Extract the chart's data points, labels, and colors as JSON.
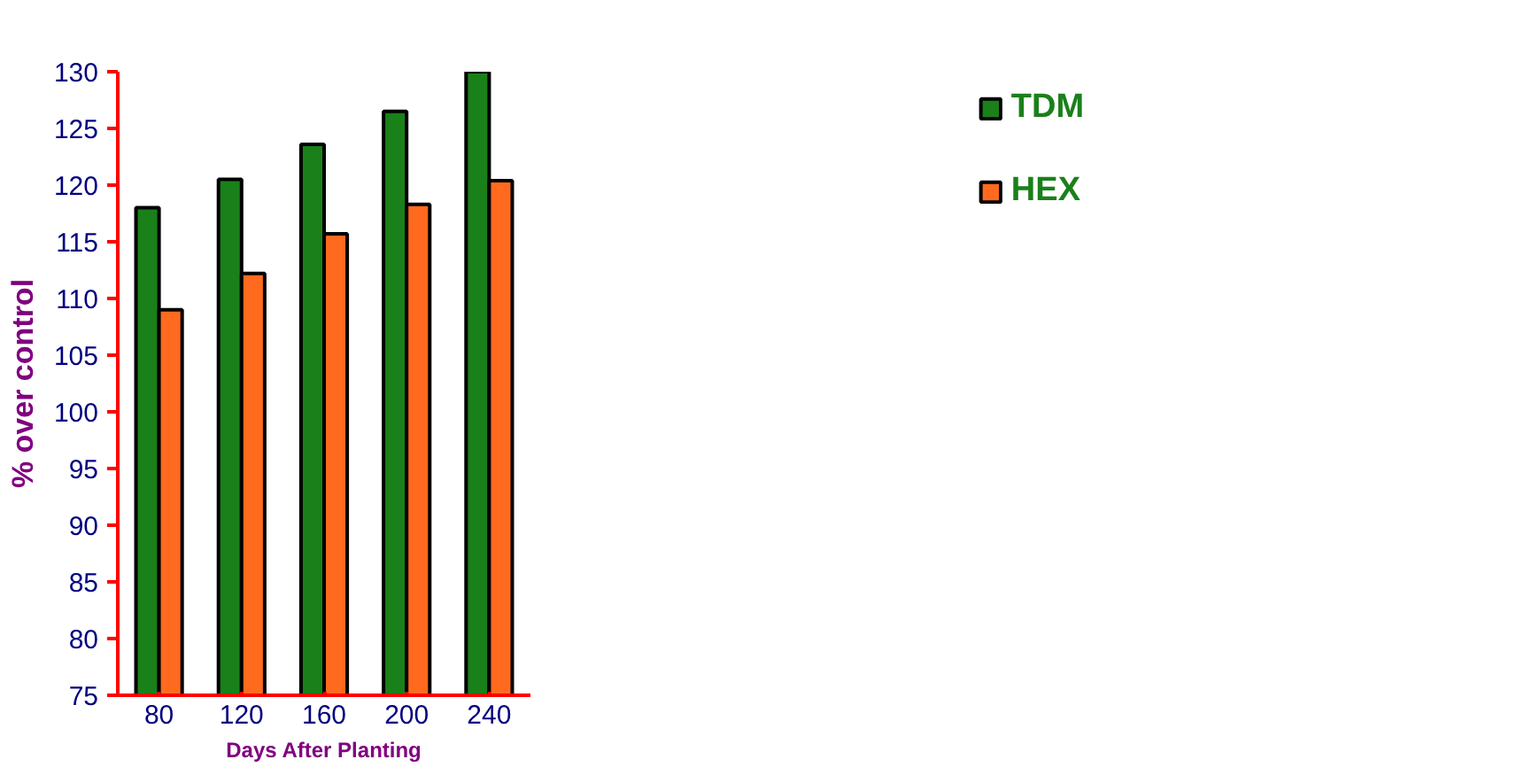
{
  "chart_data": {
    "type": "bar",
    "xlabel": "Days After Planting",
    "ylabel": "% over control",
    "categories": [
      "80",
      "120",
      "160",
      "200",
      "240"
    ],
    "series": [
      {
        "name": "TDM",
        "color": "#1a801a",
        "values": [
          118,
          120.5,
          123.6,
          126.5,
          130
        ]
      },
      {
        "name": "HEX",
        "color": "#ff6a1e",
        "values": [
          109,
          112.2,
          115.7,
          118.3,
          120.4
        ]
      }
    ],
    "ylim": [
      75,
      130
    ],
    "yticks": [
      75,
      80,
      85,
      90,
      95,
      100,
      105,
      110,
      115,
      120,
      125,
      130
    ],
    "grid": false,
    "legend": "top right"
  }
}
